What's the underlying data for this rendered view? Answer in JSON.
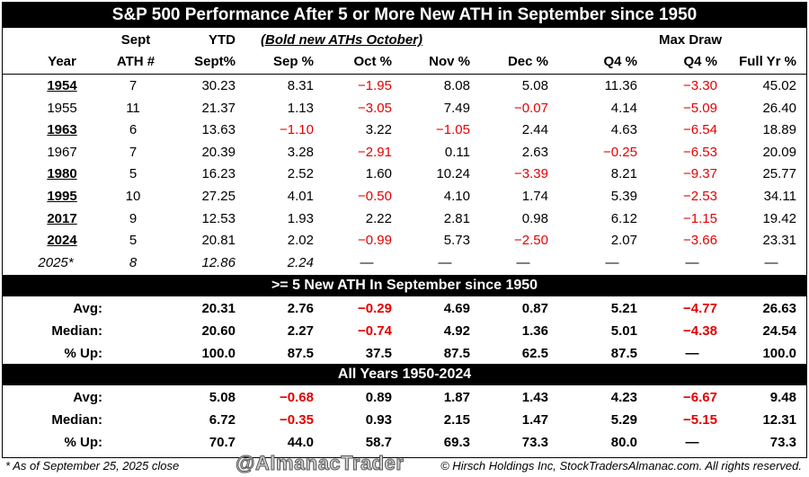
{
  "title": "S&P 500 Performance After 5 or More New ATH in September since 1950",
  "header": {
    "top": [
      "",
      "Sept",
      "YTD",
      "(Bold new ATHs October)",
      "",
      "",
      "",
      "",
      "Max Draw",
      ""
    ],
    "bottom": [
      "Year",
      "ATH #",
      "Sept%",
      "Sep %",
      "Oct %",
      "Nov %",
      "Dec %",
      "Q4 %",
      "Q4 %",
      "Full Yr %"
    ]
  },
  "rows": [
    {
      "year": "1954",
      "ath": "7",
      "ytd": "30.23",
      "sep": "8.31",
      "oct": "−1.95",
      "nov": "8.08",
      "dec": "5.08",
      "q4": "11.36",
      "maxdraw": "−3.30",
      "full": "45.02"
    },
    {
      "year": "1955",
      "ath": "11",
      "ytd": "21.37",
      "sep": "1.13",
      "oct": "−3.05",
      "nov": "7.49",
      "dec": "−0.07",
      "q4": "4.14",
      "maxdraw": "−5.09",
      "full": "26.40"
    },
    {
      "year": "1963",
      "ath": "6",
      "ytd": "13.63",
      "sep": "−1.10",
      "oct": "3.22",
      "nov": "−1.05",
      "dec": "2.44",
      "q4": "4.63",
      "maxdraw": "−6.54",
      "full": "18.89"
    },
    {
      "year": "1967",
      "ath": "7",
      "ytd": "20.39",
      "sep": "3.28",
      "oct": "−2.91",
      "nov": "0.11",
      "dec": "2.63",
      "q4": "−0.25",
      "maxdraw": "−6.53",
      "full": "20.09"
    },
    {
      "year": "1980",
      "ath": "5",
      "ytd": "16.23",
      "sep": "2.52",
      "oct": "1.60",
      "nov": "10.24",
      "dec": "−3.39",
      "q4": "8.21",
      "maxdraw": "−9.37",
      "full": "25.77"
    },
    {
      "year": "1995",
      "ath": "10",
      "ytd": "27.25",
      "sep": "4.01",
      "oct": "−0.50",
      "nov": "4.10",
      "dec": "1.74",
      "q4": "5.39",
      "maxdraw": "−2.53",
      "full": "34.11"
    },
    {
      "year": "2017",
      "ath": "9",
      "ytd": "12.53",
      "sep": "1.93",
      "oct": "2.22",
      "nov": "2.81",
      "dec": "0.98",
      "q4": "6.12",
      "maxdraw": "−1.15",
      "full": "19.42"
    },
    {
      "year": "2024",
      "ath": "5",
      "ytd": "20.81",
      "sep": "2.02",
      "oct": "−0.99",
      "nov": "5.73",
      "dec": "−2.50",
      "q4": "2.07",
      "maxdraw": "−3.66",
      "full": "23.31"
    },
    {
      "year": "2025*",
      "ath": "8",
      "ytd": "12.86",
      "sep": "2.24",
      "oct": "—",
      "nov": "—",
      "dec": "—",
      "q4": "—",
      "maxdraw": "—",
      "full": "—"
    }
  ],
  "section1": {
    "title": ">= 5 New ATH In September since 1950",
    "rows": [
      {
        "label": "Avg:",
        "ytd": "20.31",
        "sep": "2.76",
        "oct": "−0.29",
        "nov": "4.69",
        "dec": "0.87",
        "q4": "5.21",
        "maxdraw": "−4.77",
        "full": "26.63"
      },
      {
        "label": "Median:",
        "ytd": "20.60",
        "sep": "2.27",
        "oct": "−0.74",
        "nov": "4.92",
        "dec": "1.36",
        "q4": "5.01",
        "maxdraw": "−4.38",
        "full": "24.54"
      },
      {
        "label": "% Up:",
        "ytd": "100.0",
        "sep": "87.5",
        "oct": "37.5",
        "nov": "87.5",
        "dec": "62.5",
        "q4": "87.5",
        "maxdraw": "—",
        "full": "100.0"
      }
    ]
  },
  "section2": {
    "title": "All Years 1950-2024",
    "rows": [
      {
        "label": "Avg:",
        "ytd": "5.08",
        "sep": "−0.68",
        "oct": "0.89",
        "nov": "1.87",
        "dec": "1.43",
        "q4": "4.23",
        "maxdraw": "−6.67",
        "full": "9.48"
      },
      {
        "label": "Median:",
        "ytd": "6.72",
        "sep": "−0.35",
        "oct": "0.93",
        "nov": "2.15",
        "dec": "1.47",
        "q4": "5.29",
        "maxdraw": "−5.15",
        "full": "12.31"
      },
      {
        "label": "% Up:",
        "ytd": "70.7",
        "sep": "44.0",
        "oct": "58.7",
        "nov": "69.3",
        "dec": "73.3",
        "q4": "80.0",
        "maxdraw": "—",
        "full": "73.3"
      }
    ]
  },
  "footer": {
    "note": "* As of September 25, 2025 close",
    "watermark": "@AlmanacTrader",
    "copyright": "© Hirsch Holdings Inc, StockTradersAlmanac.com. All rights reserved."
  },
  "colors": {
    "negative": "#e30000",
    "band": "#000000"
  }
}
